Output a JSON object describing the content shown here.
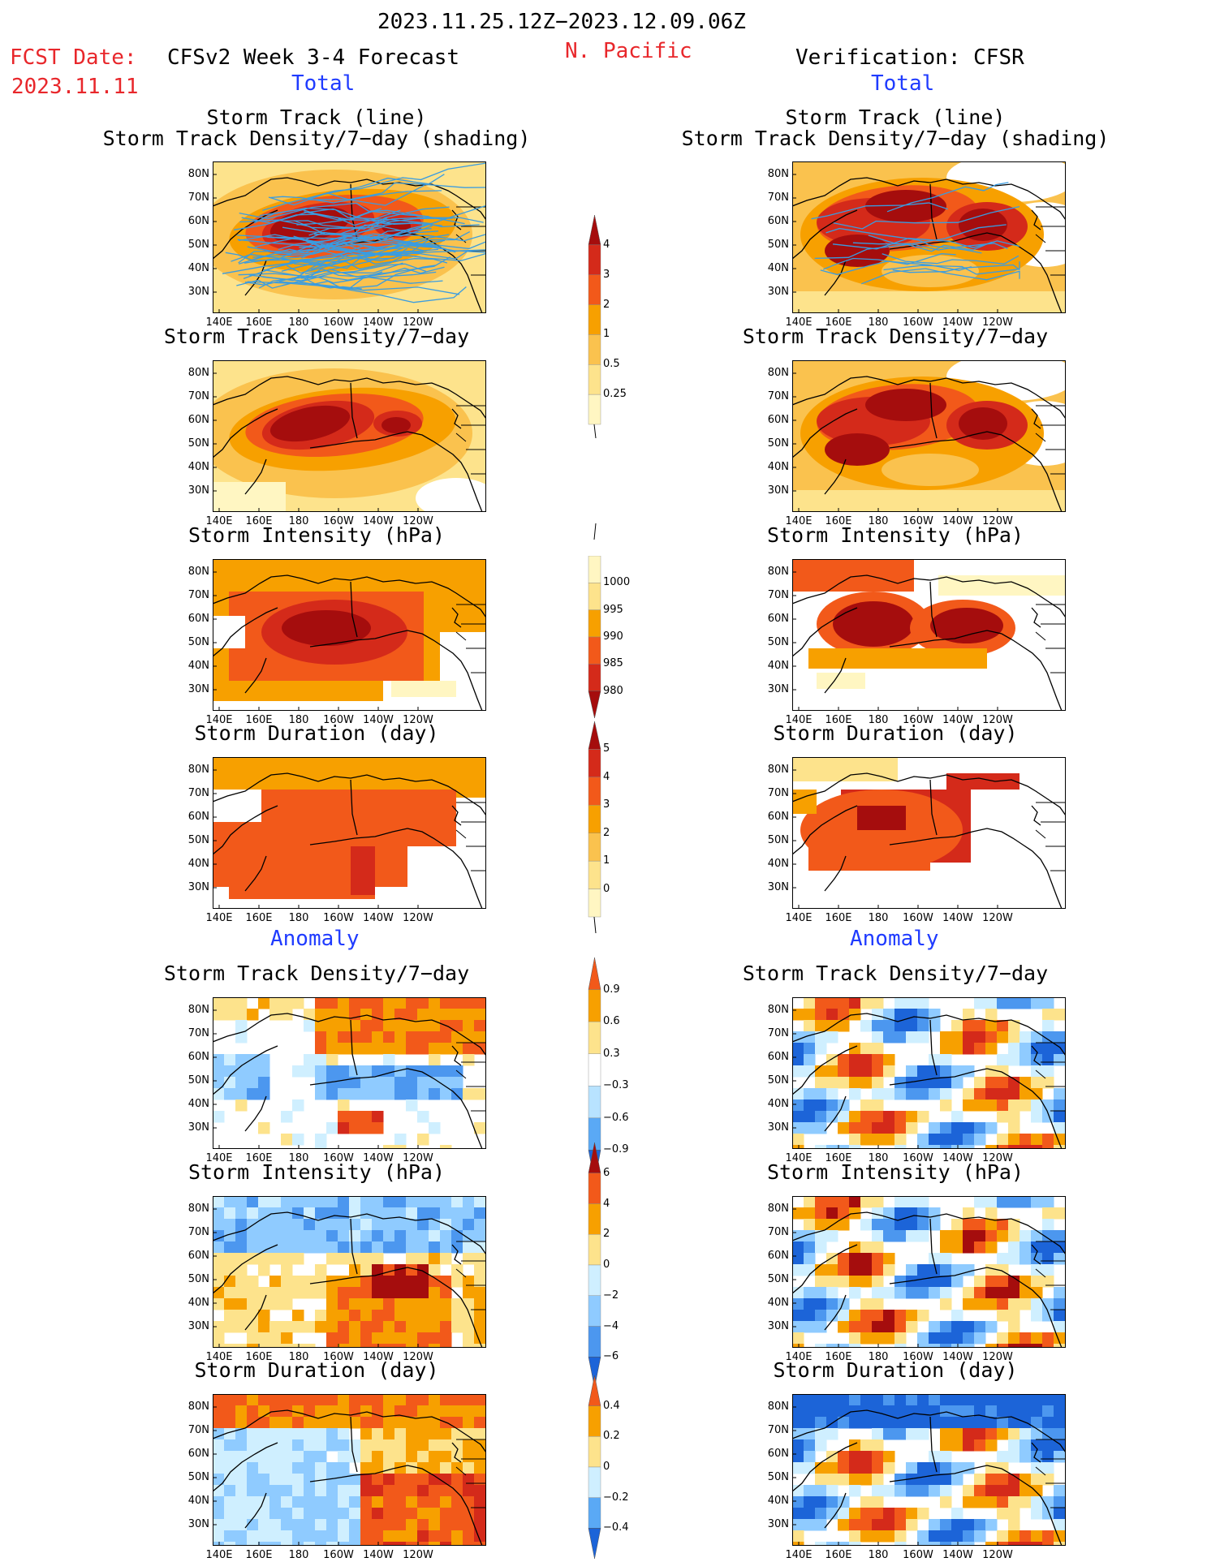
{
  "header": {
    "date_range": "2023.11.25.12Z−2023.12.09.06Z",
    "fcst_label": "FCST Date:",
    "fcst_date": "2023.11.11",
    "model": "CFSv2 Week 3-4 Forecast",
    "region": "N. Pacific",
    "verification": "Verification: CFSR",
    "total_left": "Total",
    "total_right": "Total",
    "anomaly_left": "Anomaly",
    "anomaly_right": "Anomaly"
  },
  "panels": {
    "r0": {
      "title": "Storm Track (line)\nStorm Track Density/7−day (shading)"
    },
    "r1": {
      "title": "Storm Track Density/7−day"
    },
    "r2": {
      "title": "Storm Intensity (hPa)"
    },
    "r3": {
      "title": "Storm Duration (day)"
    },
    "r4": {
      "title": "Storm Track Density/7−day"
    },
    "r5": {
      "title": "Storm Intensity (hPa)"
    },
    "r6": {
      "title": "Storm Duration (day)"
    }
  },
  "axes": {
    "lat_labels": [
      "80N",
      "70N",
      "60N",
      "50N",
      "40N",
      "30N"
    ],
    "lon_labels": [
      "140E",
      "160E",
      "180",
      "160W",
      "140W",
      "120W"
    ]
  },
  "colorbars": {
    "density": {
      "labels": [
        "4",
        "3",
        "2",
        "1",
        "0.5",
        "0.25"
      ],
      "colors": [
        "#a50d0d",
        "#d42a1a",
        "#f2591a",
        "#f7a000",
        "#fac24e",
        "#fde38c",
        "#fff6c2"
      ]
    },
    "intensity": {
      "labels": [
        "1000",
        "995",
        "990",
        "985",
        "980"
      ],
      "colors": [
        "#fff6c2",
        "#fde38c",
        "#f7a000",
        "#f2591a",
        "#d42a1a",
        "#a50d0d"
      ]
    },
    "duration": {
      "labels": [
        "5",
        "4",
        "3",
        "2",
        "1",
        "0"
      ],
      "colors": [
        "#a50d0d",
        "#d42a1a",
        "#f2591a",
        "#f7a000",
        "#fac24e",
        "#fde38c",
        "#fff6c2"
      ]
    },
    "anom_density": {
      "labels": [
        "0.9",
        "0.6",
        "0.3",
        "−0.3",
        "−0.6",
        "−0.9"
      ],
      "colors": [
        "#f2591a",
        "#f7a000",
        "#fde38c",
        "#ffffff",
        "#b8e3ff",
        "#5aa9f5",
        "#1c64d8"
      ]
    },
    "anom_intensity": {
      "labels": [
        "6",
        "4",
        "2",
        "0",
        "−2",
        "−4",
        "−6"
      ],
      "colors": [
        "#a50d0d",
        "#f2591a",
        "#f7a000",
        "#fde38c",
        "#cfefff",
        "#8fcbff",
        "#4c97ef",
        "#1c64d8"
      ]
    },
    "anom_duration": {
      "labels": [
        "0.4",
        "0.2",
        "0",
        "−0.2",
        "−0.4"
      ],
      "colors": [
        "#f2591a",
        "#f7a000",
        "#fde38c",
        "#cfefff",
        "#5aa9f5",
        "#1c64d8"
      ]
    }
  }
}
